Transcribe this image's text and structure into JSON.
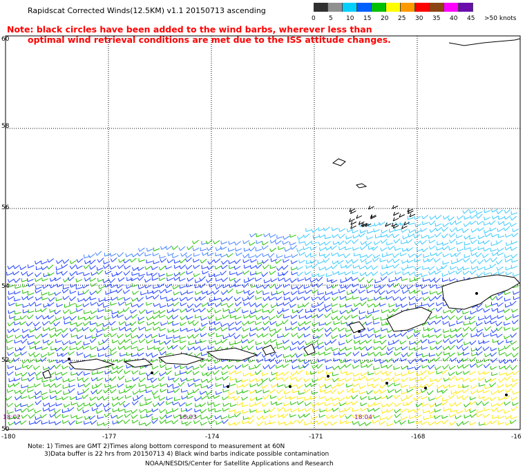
{
  "title": "Rapidscat Corrected Winds(12.5KM) v1.1 20150713 ascending",
  "warning_line1": "Note: black circles have been added to the wind barbs, wherever less than",
  "warning_line2": "optimal wind retrieval conditions are met due to the ISS attitude changes.",
  "color_scale": {
    "colors": [
      "#303030",
      "#909090",
      "#00d0ff",
      "#0060ff",
      "#00c000",
      "#ffff00",
      "#ff9900",
      "#ff0000",
      "#8b4513",
      "#ff00ff",
      "#6a0dad"
    ],
    "labels": [
      "0",
      "5",
      "10",
      "15",
      "20",
      "25",
      "30",
      "35",
      "40",
      "45",
      ">50 knots"
    ]
  },
  "lat_labels": [
    "60",
    "58",
    "56",
    "54",
    "52",
    "50"
  ],
  "lon_labels": [
    "-180",
    "-177",
    "-174",
    "-171",
    "-168",
    "-16"
  ],
  "time_labels": [
    "18:02",
    "18:03",
    "18:04"
  ],
  "notes": {
    "line1": "Note: 1) Times are GMT 2)Times along bottom correspond to measurement at 60N",
    "line2": "3)Data buffer is 22 hrs from 20150713 4) Black wind barbs indicate possible contamination"
  },
  "credit": "NOAA/NESDIS/Center for Satellite Applications and Research"
}
